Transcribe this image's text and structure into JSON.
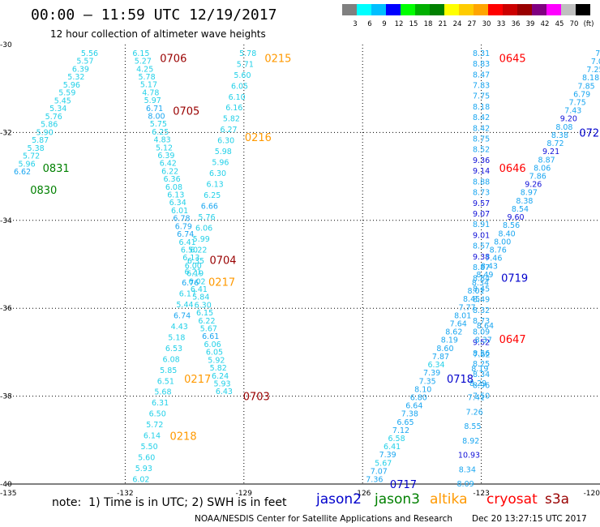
{
  "header": {
    "title": "00:00 — 11:59 UTC 12/19/2017",
    "subtitle": "12 hour collection of altimeter wave heights"
  },
  "colorbar": {
    "colors": [
      "#808080",
      "#00ffff",
      "#00bfff",
      "#0000ff",
      "#00ff00",
      "#00b000",
      "#008000",
      "#ffff00",
      "#ffcc00",
      "#ffa500",
      "#ff0000",
      "#cc0000",
      "#990000",
      "#800080",
      "#ff00ff",
      "#c0c0c0",
      "#000000"
    ],
    "labels": [
      "3",
      "6",
      "9",
      "12",
      "15",
      "18",
      "21",
      "24",
      "27",
      "30",
      "33",
      "36",
      "39",
      "42",
      "45",
      "70",
      "(ft)"
    ]
  },
  "axes": {
    "x_ticks": [
      "-135",
      "-132",
      "-129",
      "-126",
      "-123",
      "-120"
    ],
    "y_ticks": [
      "-30",
      "-32",
      "-34",
      "-36",
      "-38",
      "-40"
    ]
  },
  "note": "note:  1) Time is in UTC; 2) SWH is in feet",
  "satellites": [
    {
      "name": "jason2",
      "color": "#0000cc"
    },
    {
      "name": "jason3",
      "color": "#008000"
    },
    {
      "name": "altika",
      "color": "#ff9900"
    },
    {
      "name": "cryosat",
      "color": "#ff0000"
    },
    {
      "name": "s3a",
      "color": "#990000"
    }
  ],
  "credit": "NOAA/NESDIS Center for Satellite Applications and Research",
  "timestamp": "Dec 20 13:27:15 UTC 2017",
  "chart_data": {
    "type": "scatter",
    "title": "12 hour collection of altimeter wave heights",
    "xlim": [
      -135,
      -120
    ],
    "ylim": [
      -40,
      -30
    ],
    "units": "ft",
    "tracks": [
      {
        "sat": "jason3",
        "start": [
          -132.9,
          -30.2
        ],
        "end": [
          -134.6,
          -32.9
        ],
        "values": [
          "5.56",
          "5.57",
          "6.39",
          "5.32",
          "5.96",
          "5.59",
          "5.45",
          "5.34",
          "5.76",
          "5.86",
          "5.90",
          "5.87",
          "5.38",
          "5.72",
          "5.96",
          "6.62"
        ],
        "times": [
          {
            "text": "0831",
            "lat": -32.8
          },
          {
            "text": "0830",
            "lat": -33.3
          }
        ]
      },
      {
        "sat": "s3a",
        "start": [
          -131.6,
          -30.2
        ],
        "end": [
          -129.5,
          -37.9
        ],
        "values": [
          "6.15",
          "5.27",
          "4.25",
          "5.78",
          "5.17",
          "4.78",
          "5.97",
          "6.71",
          "8.00",
          "5.75",
          "6.25",
          "4.83",
          "5.12",
          "6.39",
          "6.42",
          "6.22",
          "6.36",
          "6.08",
          "6.13",
          "6.34",
          "6.01",
          "6.78",
          "6.79",
          "6.74",
          "6.41",
          "6.50",
          "6.13",
          "6.00",
          "6.19",
          "6.02",
          "6.41",
          "5.84",
          "6.30",
          "6.15",
          "6.22",
          "5.67",
          "6.61",
          "6.06",
          "6.05",
          "5.92",
          "5.82",
          "6.24",
          "5.93",
          "6.43"
        ],
        "times": [
          {
            "text": "0706",
            "lat": -30.3
          },
          {
            "text": "0705",
            "lat": -31.5
          },
          {
            "text": "0704",
            "lat": -34.9
          },
          {
            "text": "0703",
            "lat": -38.0
          }
        ]
      },
      {
        "sat": "altika",
        "start": [
          -128.9,
          -30.2
        ],
        "end": [
          -131.6,
          -39.9
        ],
        "values": [
          "5.78",
          "5.71",
          "5.60",
          "6.05",
          "6.10",
          "6.16",
          "5.82",
          "6.27",
          "6.30",
          "5.98",
          "5.96",
          "6.30",
          "6.13",
          "6.25",
          "6.66",
          "5.76",
          "6.06",
          "5.99",
          "6.22",
          "6.35",
          "6.21",
          "6.76",
          "6.17",
          "5.44",
          "6.74",
          "4.43",
          "5.18",
          "6.53",
          "6.08",
          "5.85",
          "6.51",
          "5.68",
          "6.31",
          "6.50",
          "5.72",
          "6.14",
          "5.50",
          "5.60",
          "5.93",
          "6.02"
        ],
        "times": [
          {
            "text": "0215",
            "lat": -30.3
          },
          {
            "text": "0216",
            "lat": -32.1
          },
          {
            "text": "0217",
            "lat": -35.4
          },
          {
            "text": "0217",
            "lat": -37.6
          },
          {
            "text": "0218",
            "lat": -38.9
          }
        ]
      },
      {
        "sat": "cryosat",
        "start": [
          -123.0,
          -30.2
        ],
        "end": [
          -123.0,
          -38.0
        ],
        "values": [
          "8.31",
          "8.83",
          "8.47",
          "7.83",
          "7.75",
          "8.18",
          "8.42",
          "8.42",
          "8.75",
          "8.52",
          "9.36",
          "9.14",
          "8.88",
          "8.73",
          "9.57",
          "9.07",
          "8.91",
          "9.01",
          "8.57",
          "9.38",
          "8.87",
          "8.84",
          "8.45",
          "8.49",
          "8.32",
          "8.73",
          "8.09",
          "9.52",
          "8.56",
          "8.25",
          "8.34",
          "8.96",
          "7.50"
        ],
        "times": [
          {
            "text": "0645",
            "lat": -30.3
          },
          {
            "text": "0646",
            "lat": -32.8
          },
          {
            "text": "0647",
            "lat": -36.7
          }
        ]
      },
      {
        "sat": "jason2",
        "start": [
          -119.9,
          -30.2
        ],
        "end": [
          -125.7,
          -39.9
        ],
        "values": [
          "7.01",
          "7.09",
          "7.25",
          "8.18",
          "7.85",
          "6.79",
          "7.75",
          "7.43",
          "9.20",
          "8.08",
          "8.38",
          "8.72",
          "9.21",
          "8.87",
          "8.06",
          "7.86",
          "9.26",
          "8.97",
          "8.38",
          "8.54",
          "9.60",
          "8.56",
          "8.40",
          "8.00",
          "8.76",
          "7.46",
          "8.43",
          "8.49",
          "8.34",
          "8.01",
          "8.45",
          "7.77",
          "8.01",
          "7.64",
          "8.62",
          "8.19",
          "8.60",
          "7.87",
          "6.34",
          "7.39",
          "7.35",
          "8.10",
          "6.80",
          "6.64",
          "7.38",
          "6.65",
          "7.12",
          "6.58",
          "6.41",
          "7.39",
          "5.67",
          "7.07",
          "7.36"
        ],
        "times": [
          {
            "text": "072",
            "lat": -32.0
          },
          {
            "text": "0719",
            "lat": -35.3
          },
          {
            "text": "0718",
            "lat": -37.6
          },
          {
            "text": "0717",
            "lat": -40.0
          }
        ]
      },
      {
        "sat": "jason2",
        "start": [
          -122.9,
          -36.4
        ],
        "end": [
          -123.4,
          -40.0
        ],
        "values": [
          "8.64",
          "8.37",
          "7.62",
          "8.19",
          "8.29",
          "7.41",
          "7.26",
          "8.55",
          "8.92",
          "10.93",
          "8.34",
          "8.09"
        ],
        "times": []
      }
    ]
  }
}
